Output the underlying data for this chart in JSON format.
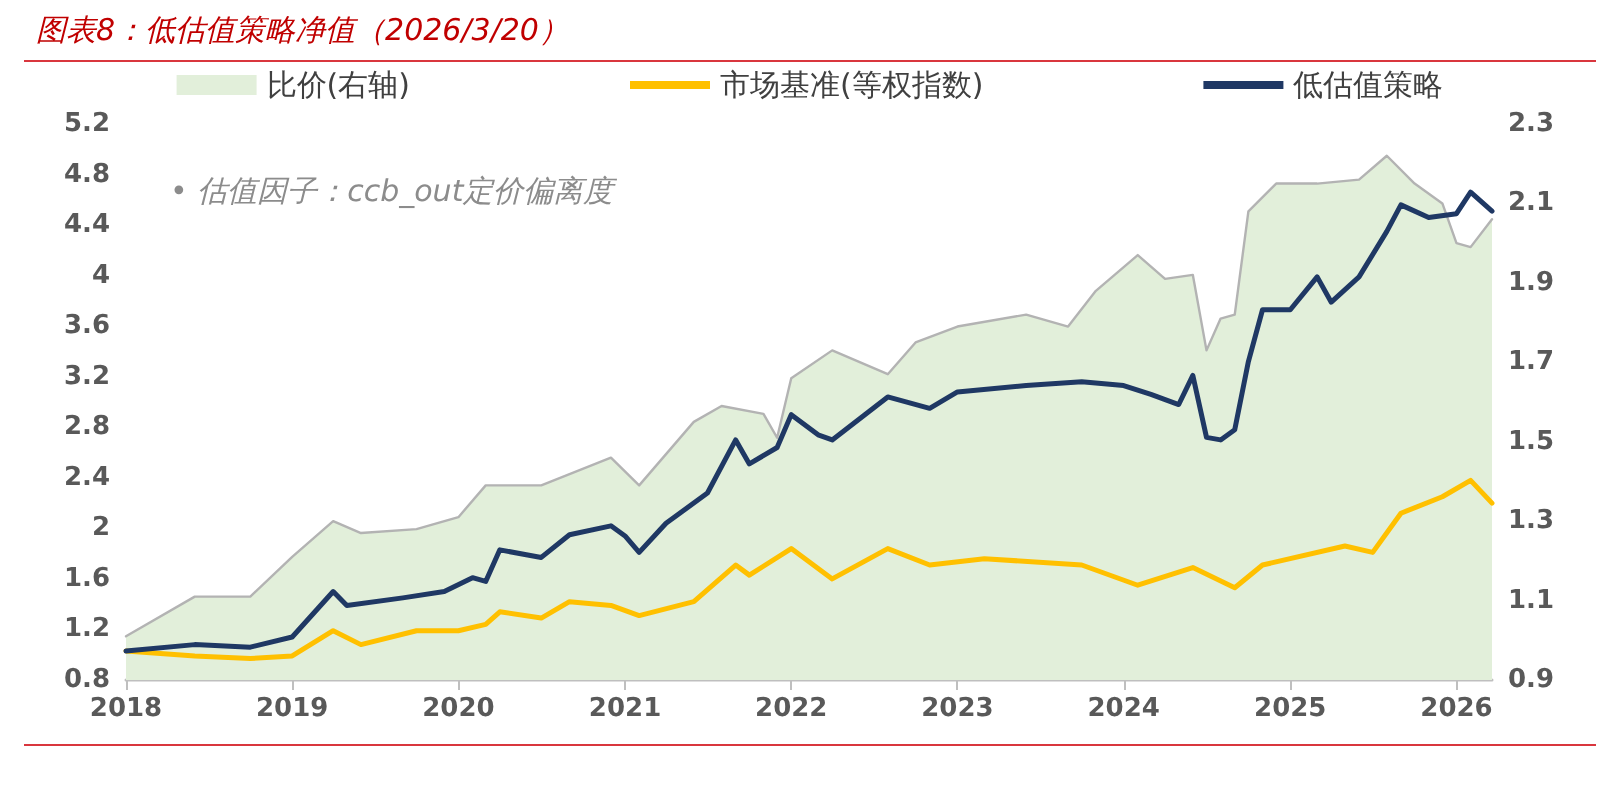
{
  "chart_data": {
    "type": "line",
    "title": "图表8：低估值策略净值（2026/3/20）",
    "annotations": [
      "• 估值因子：ccb_out定价偏离度"
    ],
    "xlim": [
      "2018-01",
      "2026-03-20"
    ],
    "xticks": [
      "2018",
      "2019",
      "2020",
      "2021",
      "2022",
      "2023",
      "2024",
      "2025",
      "2026"
    ],
    "ylim": [
      0.8,
      5.2
    ],
    "yticks": [
      0.8,
      1.2,
      1.6,
      2,
      2.4,
      2.8,
      3.2,
      3.6,
      4,
      4.4,
      4.8,
      5.2
    ],
    "y2lim": [
      0.9,
      2.3
    ],
    "y2ticks": [
      0.9,
      1.1,
      1.3,
      1.5,
      1.7,
      1.9,
      2.1,
      2.3
    ],
    "grid": false,
    "legend": "top",
    "marker": "none",
    "line_style": "solid",
    "series": [
      {
        "name": "比价(右轴)",
        "type": "area",
        "axis": "y2",
        "color": "#b3b3b3",
        "x": [
          "2018-01",
          "2018-06",
          "2018-10",
          "2019-01",
          "2019-04",
          "2019-06",
          "2019-10",
          "2020-01",
          "2020-03",
          "2020-07",
          "2020-12",
          "2021-02",
          "2021-06",
          "2021-08",
          "2021-11",
          "2021-12",
          "2022-01",
          "2022-04",
          "2022-08",
          "2022-10",
          "2023-01",
          "2023-06",
          "2023-09",
          "2023-11",
          "2024-02",
          "2024-04",
          "2024-06",
          "2024-07",
          "2024-08",
          "2024-09",
          "2024-10",
          "2024-12",
          "2025-03",
          "2025-06",
          "2025-08",
          "2025-10",
          "2025-12",
          "2026-01",
          "2026-02",
          "2026-03-20"
        ],
        "values": [
          1.01,
          1.11,
          1.11,
          1.21,
          1.3,
          1.27,
          1.28,
          1.31,
          1.39,
          1.39,
          1.46,
          1.39,
          1.55,
          1.59,
          1.57,
          1.51,
          1.66,
          1.73,
          1.67,
          1.75,
          1.79,
          1.82,
          1.79,
          1.88,
          1.97,
          1.91,
          1.92,
          1.73,
          1.81,
          1.82,
          2.08,
          2.15,
          2.15,
          2.16,
          2.22,
          2.15,
          2.1,
          2.0,
          1.99,
          2.06
        ]
      },
      {
        "name": "市场基准(等权指数)",
        "color": "#ffc000",
        "x": [
          "2018-01",
          "2018-06",
          "2018-10",
          "2019-01",
          "2019-04",
          "2019-06",
          "2019-10",
          "2020-01",
          "2020-03",
          "2020-04",
          "2020-07",
          "2020-09",
          "2020-12",
          "2021-02",
          "2021-06",
          "2021-09",
          "2021-10",
          "2022-01",
          "2022-04",
          "2022-08",
          "2022-11",
          "2023-03",
          "2023-10",
          "2024-02",
          "2024-06",
          "2024-09",
          "2024-11",
          "2025-05",
          "2025-07",
          "2025-09",
          "2025-12",
          "2026-02",
          "2026-03-20"
        ],
        "values": [
          1.03,
          0.99,
          0.97,
          0.99,
          1.19,
          1.08,
          1.19,
          1.19,
          1.24,
          1.34,
          1.29,
          1.42,
          1.39,
          1.31,
          1.42,
          1.71,
          1.63,
          1.84,
          1.6,
          1.84,
          1.71,
          1.76,
          1.71,
          1.55,
          1.69,
          1.53,
          1.71,
          1.86,
          1.81,
          2.12,
          2.25,
          2.38,
          2.2
        ]
      },
      {
        "name": "低估值策略",
        "color": "#1f3864",
        "x": [
          "2018-01",
          "2018-06",
          "2018-10",
          "2019-01",
          "2019-04",
          "2019-05",
          "2019-09",
          "2019-12",
          "2020-02",
          "2020-03",
          "2020-04",
          "2020-07",
          "2020-09",
          "2020-12",
          "2021-01",
          "2021-02",
          "2021-04",
          "2021-07",
          "2021-09",
          "2021-10",
          "2021-12",
          "2022-01",
          "2022-03",
          "2022-04",
          "2022-08",
          "2022-11",
          "2023-01",
          "2023-06",
          "2023-10",
          "2024-01",
          "2024-03",
          "2024-05",
          "2024-06",
          "2024-07",
          "2024-08",
          "2024-09",
          "2024-10",
          "2024-11",
          "2025-01",
          "2025-03",
          "2025-04",
          "2025-06",
          "2025-08",
          "2025-09",
          "2025-11",
          "2026-01",
          "2026-02",
          "2026-03-20"
        ],
        "values": [
          1.03,
          1.08,
          1.06,
          1.14,
          1.5,
          1.39,
          1.45,
          1.5,
          1.61,
          1.58,
          1.83,
          1.77,
          1.95,
          2.02,
          1.94,
          1.81,
          2.04,
          2.28,
          2.7,
          2.51,
          2.64,
          2.9,
          2.74,
          2.7,
          3.04,
          2.95,
          3.08,
          3.13,
          3.16,
          3.13,
          3.06,
          2.98,
          3.21,
          2.72,
          2.7,
          2.78,
          3.32,
          3.73,
          3.73,
          3.99,
          3.79,
          3.99,
          4.35,
          4.56,
          4.46,
          4.49,
          4.66,
          4.51
        ]
      }
    ]
  }
}
